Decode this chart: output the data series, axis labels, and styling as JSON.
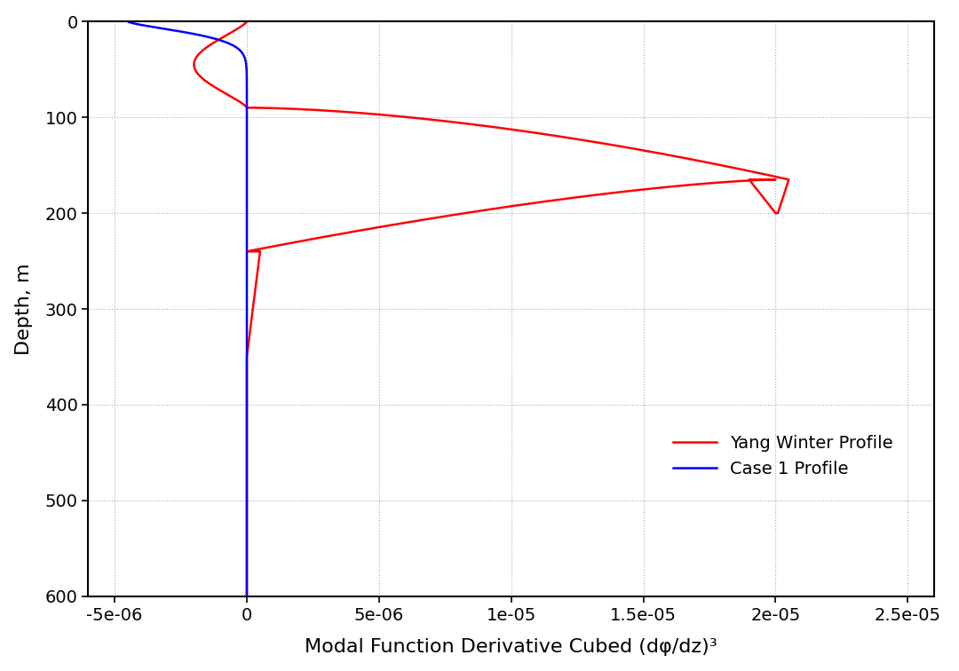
{
  "xlabel": "Modal Function Derivative Cubed (dφ/dz)³",
  "ylabel": "Depth, m",
  "xlim": [
    -6e-06,
    2.6e-05
  ],
  "ylim": [
    600,
    0
  ],
  "xticks": [
    -5e-06,
    0.0,
    5e-06,
    1e-05,
    1.5e-05,
    2e-05,
    2.5e-05
  ],
  "xtick_labels": [
    "-5e-06",
    "0",
    "5e-06",
    "1e-05",
    "1.5e-05",
    "2e-05",
    "2.5e-05"
  ],
  "yticks": [
    0,
    100,
    200,
    300,
    400,
    500,
    600
  ],
  "red_label": "Yang Winter Profile",
  "blue_label": "Case 1 Profile",
  "red_color": "#ff0000",
  "blue_color": "#0000ff",
  "linewidth": 1.8,
  "bg_color": "#ffffff",
  "grid_color": "#aaaaaa",
  "font_size": 16,
  "tick_font_size": 14,
  "legend_font_size": 14
}
